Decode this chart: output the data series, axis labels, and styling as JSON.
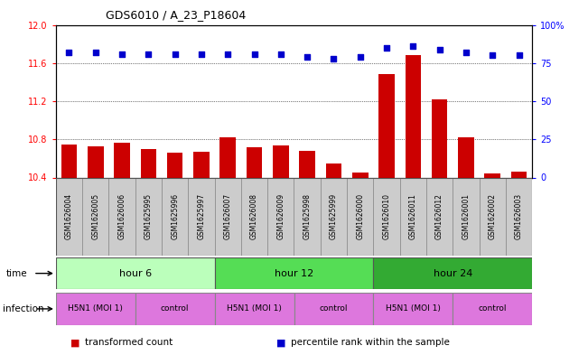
{
  "title": "GDS6010 / A_23_P18604",
  "samples": [
    "GSM1626004",
    "GSM1626005",
    "GSM1626006",
    "GSM1625995",
    "GSM1625996",
    "GSM1625997",
    "GSM1626007",
    "GSM1626008",
    "GSM1626009",
    "GSM1625998",
    "GSM1625999",
    "GSM1626000",
    "GSM1626010",
    "GSM1626011",
    "GSM1626012",
    "GSM1626001",
    "GSM1626002",
    "GSM1626003"
  ],
  "red_values": [
    10.75,
    10.73,
    10.76,
    10.7,
    10.66,
    10.67,
    10.82,
    10.72,
    10.74,
    10.68,
    10.55,
    10.45,
    11.48,
    11.68,
    11.22,
    10.82,
    10.44,
    10.46
  ],
  "blue_values": [
    82,
    82,
    81,
    81,
    81,
    81,
    81,
    81,
    81,
    79,
    78,
    79,
    85,
    86,
    84,
    82,
    80,
    80
  ],
  "ylim_left": [
    10.4,
    12.0
  ],
  "ylim_right": [
    0,
    100
  ],
  "yticks_left": [
    10.4,
    10.8,
    11.2,
    11.6,
    12.0
  ],
  "yticks_right": [
    0,
    25,
    50,
    75,
    100
  ],
  "ytick_labels_right": [
    "0",
    "25",
    "50",
    "75",
    "100%"
  ],
  "bar_color": "#cc0000",
  "dot_color": "#0000cc",
  "time_colors": [
    "#bbffbb",
    "#55dd55",
    "#33aa33"
  ],
  "time_labels": [
    "hour 6",
    "hour 12",
    "hour 24"
  ],
  "infection_color": "#dd77dd",
  "infection_labels": [
    "H5N1 (MOI 1)",
    "control",
    "H5N1 (MOI 1)",
    "control",
    "H5N1 (MOI 1)",
    "control"
  ],
  "sample_bg_color": "#cccccc",
  "background_color": "#ffffff",
  "legend_items": [
    {
      "label": "transformed count",
      "color": "#cc0000"
    },
    {
      "label": "percentile rank within the sample",
      "color": "#0000cc"
    }
  ]
}
